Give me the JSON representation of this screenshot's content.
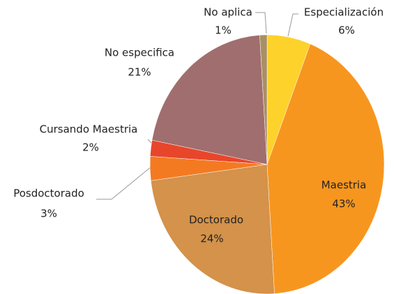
{
  "chart_data": {
    "type": "pie",
    "categories": [
      "Especialización",
      "Maestria",
      "Doctorado",
      "Posdoctorado",
      "Cursando Maestria",
      "No especifica",
      "No aplica"
    ],
    "values": [
      6,
      43,
      24,
      3,
      2,
      21,
      1
    ],
    "value_labels": [
      "6%",
      "43%",
      "24%",
      "3%",
      "2%",
      "21%",
      "1%"
    ],
    "colors": [
      "#fdd22a",
      "#f7961f",
      "#d4924a",
      "#f47a22",
      "#e8462b",
      "#a06e6e",
      "#a99062"
    ]
  }
}
